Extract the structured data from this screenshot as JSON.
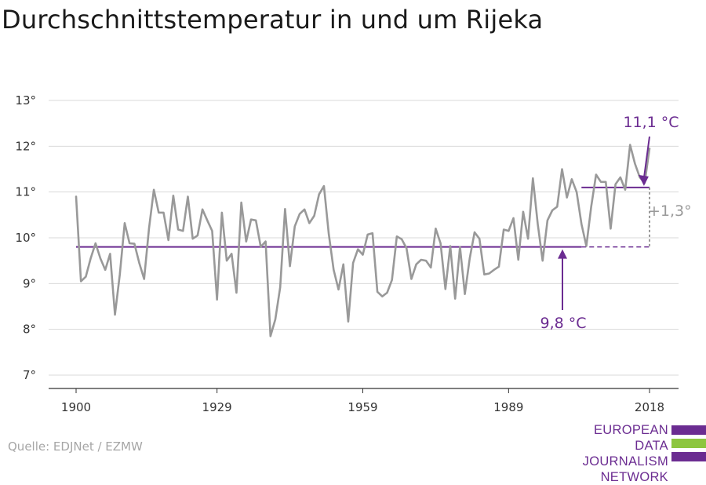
{
  "title": "Durchschnittstemperatur in und um Rijeka",
  "source": "Quelle: EDJNet / EZMW",
  "logo": {
    "lines": [
      "EUROPEAN",
      "DATA JOURNALISM",
      "NETWORK"
    ],
    "bar_colors": [
      "#6b2c91",
      "#8dc63f",
      "#6b2c91"
    ]
  },
  "colors": {
    "series": "#999999",
    "accent": "#6b2c91",
    "grid": "#d9d9d9",
    "axis": "#333333",
    "diff": "#999999"
  },
  "chart_data": {
    "type": "line",
    "title": "Durchschnittstemperatur in und um Rijeka",
    "xlabel": "",
    "ylabel": "",
    "xlim": [
      1900,
      2018
    ],
    "ylim": [
      7,
      13
    ],
    "grid": true,
    "yticks": [
      {
        "value": 7,
        "label": "7°"
      },
      {
        "value": 8,
        "label": "8°"
      },
      {
        "value": 9,
        "label": "9°"
      },
      {
        "value": 10,
        "label": "10°"
      },
      {
        "value": 11,
        "label": "11°"
      },
      {
        "value": 12,
        "label": "12°"
      },
      {
        "value": 13,
        "label": "13°"
      }
    ],
    "xticks": [
      {
        "value": 1900,
        "label": "1900"
      },
      {
        "value": 1929,
        "label": "1929"
      },
      {
        "value": 1959,
        "label": "1959"
      },
      {
        "value": 1989,
        "label": "1989"
      },
      {
        "value": 2018,
        "label": "2018"
      }
    ],
    "series": [
      {
        "x_start": 1900,
        "values": [
          10.9,
          9.05,
          9.15,
          9.55,
          9.88,
          9.55,
          9.3,
          9.65,
          8.32,
          9.2,
          10.32,
          9.88,
          9.87,
          9.45,
          9.1,
          10.2,
          11.05,
          10.55,
          10.55,
          9.95,
          10.92,
          10.18,
          10.15,
          10.9,
          9.98,
          10.05,
          10.62,
          10.38,
          10.15,
          8.65,
          10.55,
          9.5,
          9.65,
          8.8,
          10.77,
          9.92,
          10.4,
          10.38,
          9.8,
          9.92,
          7.85,
          8.22,
          8.92,
          10.63,
          9.38,
          10.25,
          10.52,
          10.62,
          10.32,
          10.48,
          10.95,
          11.13,
          10.08,
          9.3,
          8.87,
          9.42,
          8.17,
          9.45,
          9.75,
          9.63,
          10.07,
          10.1,
          8.82,
          8.72,
          8.8,
          9.08,
          10.03,
          9.97,
          9.77,
          9.1,
          9.42,
          9.52,
          9.5,
          9.35,
          10.2,
          9.88,
          8.88,
          9.82,
          8.67,
          9.8,
          8.77,
          9.55,
          10.12,
          9.98,
          9.2,
          9.22,
          9.3,
          9.37,
          10.18,
          10.15,
          10.43,
          9.52,
          10.57,
          9.98,
          11.3,
          10.3,
          9.5,
          10.38,
          10.6,
          10.68,
          11.5,
          10.88,
          11.28,
          11.0,
          10.3,
          9.82,
          10.68,
          11.38,
          11.22,
          11.22,
          10.2,
          11.17,
          11.32,
          11.05,
          12.03,
          11.62,
          11.32,
          11.2,
          11.95
        ]
      }
    ],
    "reference_lines": [
      {
        "name": "baseline",
        "value": 9.8,
        "from": 1900,
        "to": 2004,
        "dashed_to": 2018
      },
      {
        "name": "recent",
        "value": 11.1,
        "from": 2004,
        "to": 2018
      }
    ],
    "annotations": {
      "recent_label": "11,1 °C",
      "baseline_label": "9,8 °C",
      "diff_label": "+1,3°"
    }
  }
}
